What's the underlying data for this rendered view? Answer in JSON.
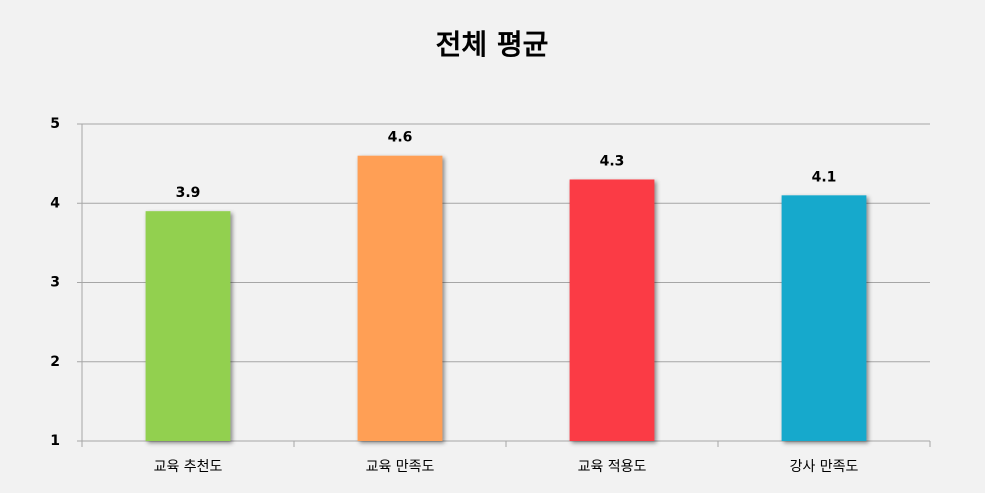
{
  "chart_data": {
    "type": "bar",
    "title": "전체 평균",
    "categories": [
      "교육 추천도",
      "교육 만족도",
      "교육 적용도",
      "강사 만족도"
    ],
    "values": [
      3.9,
      4.6,
      4.3,
      4.1
    ],
    "colors": [
      "#92d050",
      "#ff9f55",
      "#fb3a45",
      "#16a9cc"
    ],
    "ylim": [
      1,
      5
    ],
    "yticks": [
      1,
      2,
      3,
      4,
      5
    ],
    "grid": true
  }
}
